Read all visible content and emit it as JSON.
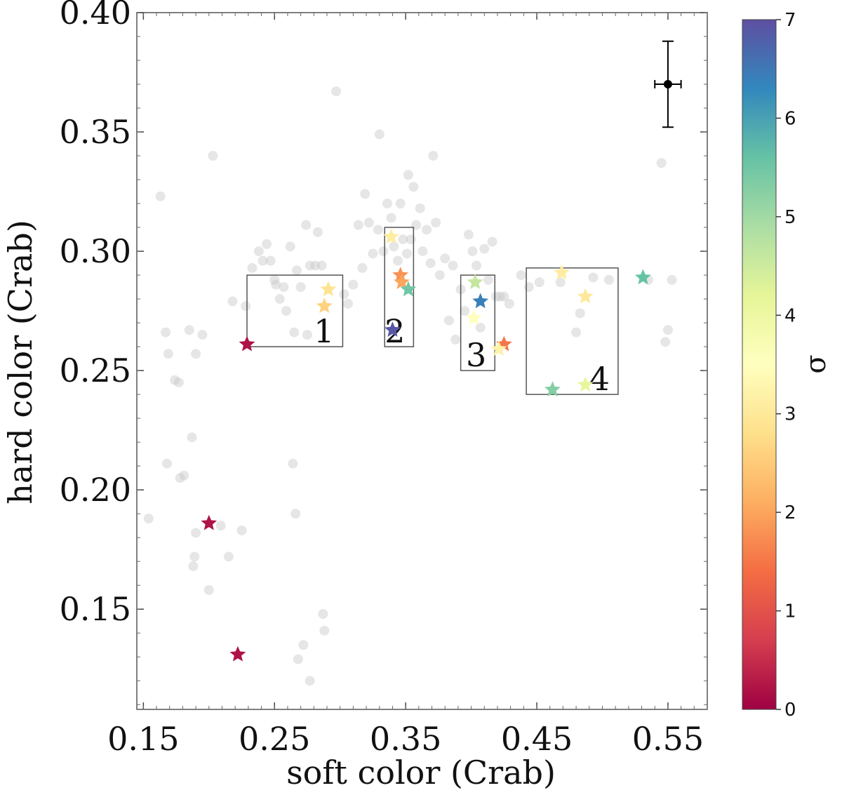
{
  "chart_data": {
    "type": "scatter",
    "xlabel": "soft color (Crab)",
    "ylabel": "hard color (Crab)",
    "xlim": [
      0.145,
      0.58
    ],
    "ylim": [
      0.108,
      0.4
    ],
    "xticks": [
      0.15,
      0.25,
      0.35,
      0.45,
      0.55
    ],
    "xtick_labels": [
      "0.15",
      "0.25",
      "0.35",
      "0.45",
      "0.55"
    ],
    "yticks": [
      0.15,
      0.2,
      0.25,
      0.3,
      0.35,
      0.4
    ],
    "ytick_labels": [
      "0.15",
      "0.20",
      "0.25",
      "0.30",
      "0.35",
      "0.40"
    ],
    "grid": false,
    "background_points": [
      [
        0.154,
        0.188
      ],
      [
        0.163,
        0.323
      ],
      [
        0.167,
        0.266
      ],
      [
        0.168,
        0.211
      ],
      [
        0.169,
        0.257
      ],
      [
        0.174,
        0.246
      ],
      [
        0.177,
        0.245
      ],
      [
        0.178,
        0.205
      ],
      [
        0.181,
        0.206
      ],
      [
        0.185,
        0.267
      ],
      [
        0.187,
        0.222
      ],
      [
        0.188,
        0.168
      ],
      [
        0.189,
        0.172
      ],
      [
        0.19,
        0.257
      ],
      [
        0.19,
        0.182
      ],
      [
        0.195,
        0.265
      ],
      [
        0.2,
        0.158
      ],
      [
        0.203,
        0.34
      ],
      [
        0.209,
        0.185
      ],
      [
        0.215,
        0.172
      ],
      [
        0.218,
        0.279
      ],
      [
        0.225,
        0.183
      ],
      [
        0.228,
        0.277
      ],
      [
        0.233,
        0.293
      ],
      [
        0.238,
        0.3
      ],
      [
        0.241,
        0.296
      ],
      [
        0.244,
        0.303
      ],
      [
        0.247,
        0.296
      ],
      [
        0.25,
        0.288
      ],
      [
        0.251,
        0.286
      ],
      [
        0.254,
        0.28
      ],
      [
        0.257,
        0.285
      ],
      [
        0.259,
        0.275
      ],
      [
        0.262,
        0.302
      ],
      [
        0.264,
        0.211
      ],
      [
        0.265,
        0.266
      ],
      [
        0.266,
        0.19
      ],
      [
        0.267,
        0.292
      ],
      [
        0.268,
        0.129
      ],
      [
        0.27,
        0.285
      ],
      [
        0.272,
        0.135
      ],
      [
        0.274,
        0.311
      ],
      [
        0.275,
        0.265
      ],
      [
        0.277,
        0.294
      ],
      [
        0.277,
        0.12
      ],
      [
        0.281,
        0.294
      ],
      [
        0.283,
        0.308
      ],
      [
        0.286,
        0.294
      ],
      [
        0.287,
        0.148
      ],
      [
        0.288,
        0.141
      ],
      [
        0.297,
        0.367
      ],
      [
        0.303,
        0.282
      ],
      [
        0.306,
        0.278
      ],
      [
        0.31,
        0.286
      ],
      [
        0.314,
        0.311
      ],
      [
        0.317,
        0.293
      ],
      [
        0.319,
        0.324
      ],
      [
        0.322,
        0.312
      ],
      [
        0.325,
        0.299
      ],
      [
        0.329,
        0.309
      ],
      [
        0.33,
        0.349
      ],
      [
        0.333,
        0.3
      ],
      [
        0.336,
        0.32
      ],
      [
        0.339,
        0.314
      ],
      [
        0.341,
        0.302
      ],
      [
        0.344,
        0.296
      ],
      [
        0.346,
        0.32
      ],
      [
        0.348,
        0.305
      ],
      [
        0.351,
        0.299
      ],
      [
        0.352,
        0.332
      ],
      [
        0.354,
        0.305
      ],
      [
        0.356,
        0.327
      ],
      [
        0.358,
        0.311
      ],
      [
        0.361,
        0.318
      ],
      [
        0.363,
        0.3
      ],
      [
        0.366,
        0.309
      ],
      [
        0.369,
        0.295
      ],
      [
        0.371,
        0.34
      ],
      [
        0.373,
        0.312
      ],
      [
        0.376,
        0.29
      ],
      [
        0.38,
        0.297
      ],
      [
        0.383,
        0.271
      ],
      [
        0.386,
        0.294
      ],
      [
        0.388,
        0.263
      ],
      [
        0.392,
        0.284
      ],
      [
        0.395,
        0.275
      ],
      [
        0.398,
        0.307
      ],
      [
        0.401,
        0.3
      ],
      [
        0.404,
        0.294
      ],
      [
        0.407,
        0.268
      ],
      [
        0.41,
        0.301
      ],
      [
        0.413,
        0.288
      ],
      [
        0.416,
        0.304
      ],
      [
        0.419,
        0.281
      ],
      [
        0.422,
        0.281
      ],
      [
        0.425,
        0.281
      ],
      [
        0.429,
        0.278
      ],
      [
        0.438,
        0.29
      ],
      [
        0.444,
        0.285
      ],
      [
        0.452,
        0.287
      ],
      [
        0.468,
        0.287
      ],
      [
        0.48,
        0.266
      ],
      [
        0.483,
        0.274
      ],
      [
        0.493,
        0.289
      ],
      [
        0.505,
        0.288
      ],
      [
        0.535,
        0.288
      ],
      [
        0.545,
        0.337
      ],
      [
        0.548,
        0.262
      ],
      [
        0.55,
        0.267
      ],
      [
        0.553,
        0.288
      ]
    ],
    "star_points": [
      {
        "x": 0.229,
        "y": 0.261,
        "sigma": 0.2
      },
      {
        "x": 0.291,
        "y": 0.284,
        "sigma": 2.9
      },
      {
        "x": 0.288,
        "y": 0.277,
        "sigma": 2.6
      },
      {
        "x": 0.2,
        "y": 0.186,
        "sigma": 0.2
      },
      {
        "x": 0.222,
        "y": 0.131,
        "sigma": 0.2
      },
      {
        "x": 0.339,
        "y": 0.306,
        "sigma": 3.1
      },
      {
        "x": 0.346,
        "y": 0.29,
        "sigma": 1.8
      },
      {
        "x": 0.347,
        "y": 0.287,
        "sigma": 2.0
      },
      {
        "x": 0.352,
        "y": 0.284,
        "sigma": 5.5
      },
      {
        "x": 0.34,
        "y": 0.267,
        "sigma": 6.9
      },
      {
        "x": 0.403,
        "y": 0.287,
        "sigma": 4.6
      },
      {
        "x": 0.407,
        "y": 0.279,
        "sigma": 6.4
      },
      {
        "x": 0.402,
        "y": 0.272,
        "sigma": 3.5
      },
      {
        "x": 0.425,
        "y": 0.261,
        "sigma": 1.5
      },
      {
        "x": 0.421,
        "y": 0.259,
        "sigma": 3.2
      },
      {
        "x": 0.469,
        "y": 0.291,
        "sigma": 3.1
      },
      {
        "x": 0.487,
        "y": 0.281,
        "sigma": 3.0
      },
      {
        "x": 0.531,
        "y": 0.289,
        "sigma": 5.6
      },
      {
        "x": 0.462,
        "y": 0.242,
        "sigma": 5.3
      },
      {
        "x": 0.487,
        "y": 0.244,
        "sigma": 4.1
      }
    ],
    "regions": [
      {
        "label": "1",
        "x0": 0.229,
        "x1": 0.302,
        "y0": 0.26,
        "y1": 0.29
      },
      {
        "label": "2",
        "x0": 0.334,
        "x1": 0.356,
        "y0": 0.26,
        "y1": 0.31
      },
      {
        "label": "3",
        "x0": 0.392,
        "x1": 0.418,
        "y0": 0.25,
        "y1": 0.29
      },
      {
        "label": "4",
        "x0": 0.442,
        "x1": 0.512,
        "y0": 0.24,
        "y1": 0.293
      }
    ],
    "error_bar_point": {
      "x": 0.55,
      "y": 0.37,
      "xerr": 0.01,
      "yerr_low": 0.018,
      "yerr_high": 0.018
    },
    "colorbar": {
      "label": "σ",
      "min": 0,
      "max": 7,
      "ticks": [
        0,
        1,
        2,
        3,
        4,
        5,
        6,
        7
      ],
      "tick_labels": [
        "0",
        "1",
        "2",
        "3",
        "4",
        "5",
        "6",
        "7"
      ],
      "colormap": "Spectral",
      "colors": [
        "#9e0142",
        "#d53e4f",
        "#f46d43",
        "#fdae61",
        "#fee08b",
        "#ffffbf",
        "#e6f598",
        "#abdda4",
        "#66c2a5",
        "#3288bd",
        "#5e4fa2"
      ]
    },
    "background_point_color": "#c8c8c8"
  }
}
